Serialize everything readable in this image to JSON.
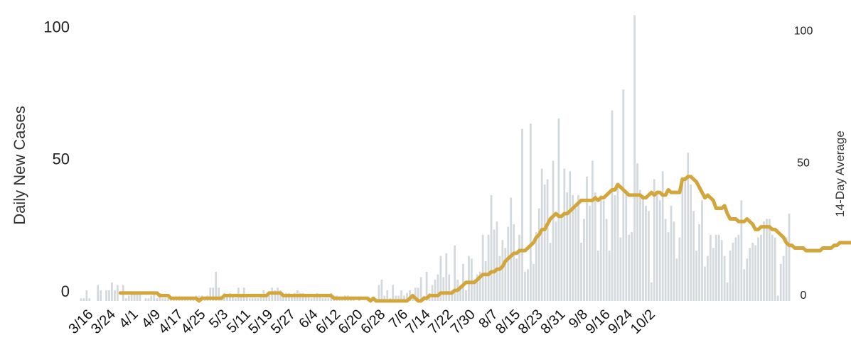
{
  "chart_data": {
    "type": "bar+line",
    "title": "",
    "ylabel_left": "Daily New Cases",
    "ylabel_right": "14-Day Average",
    "ylim_left": [
      0,
      110
    ],
    "ylim_right": [
      0,
      110
    ],
    "yticks_left": [
      "0",
      "50",
      "100"
    ],
    "yticks_right": [
      "0",
      "50",
      "100"
    ],
    "xtick_labels": [
      "3/16",
      "3/24",
      "4/1",
      "4/9",
      "4/17",
      "4/25",
      "5/3",
      "5/11",
      "5/19",
      "5/27",
      "6/4",
      "6/12",
      "6/20",
      "6/28",
      "7/6",
      "7/14",
      "7/22",
      "7/30",
      "8/7",
      "8/15",
      "8/23",
      "8/31",
      "9/8",
      "9/16",
      "9/24",
      "10/2"
    ],
    "start_date": "3/14",
    "grid": false,
    "legend": "none",
    "colors": {
      "bars": "#d3d9dc",
      "line": "#d3a63c"
    },
    "series": [
      {
        "name": "Daily New Cases",
        "kind": "bar",
        "values": [
          1,
          1,
          4,
          1,
          0,
          0,
          6,
          4,
          0,
          4,
          4,
          7,
          4,
          6,
          0,
          6,
          1,
          2,
          3,
          3,
          3,
          3,
          0,
          1,
          1,
          2,
          3,
          1,
          3,
          1,
          1,
          1,
          1,
          1,
          1,
          1,
          1,
          1,
          1,
          1,
          1,
          2,
          2,
          2,
          1,
          2,
          5,
          5,
          11,
          5,
          2,
          3,
          2,
          3,
          2,
          1,
          5,
          2,
          5,
          2,
          1,
          1,
          1,
          1,
          2,
          4,
          2,
          2,
          5,
          4,
          5,
          4,
          2,
          3,
          3,
          2,
          3,
          4,
          3,
          3,
          2,
          2,
          1,
          2,
          3,
          2,
          1,
          1,
          1,
          3,
          2,
          2,
          1,
          1,
          2,
          2,
          1,
          1,
          0,
          1,
          0,
          0,
          1,
          0,
          1,
          1,
          6,
          8,
          2,
          4,
          1,
          6,
          2,
          2,
          4,
          2,
          3,
          4,
          2,
          5,
          5,
          9,
          2,
          11,
          3,
          6,
          8,
          10,
          17,
          9,
          18,
          10,
          4,
          21,
          8,
          6,
          14,
          4,
          17,
          16,
          8,
          10,
          11,
          25,
          15,
          25,
          40,
          27,
          30,
          17,
          23,
          20,
          28,
          39,
          29,
          16,
          25,
          65,
          11,
          12,
          67,
          14,
          26,
          35,
          50,
          44,
          46,
          22,
          53,
          30,
          69,
          32,
          50,
          41,
          49,
          40,
          35,
          40,
          22,
          31,
          47,
          36,
          53,
          41,
          19,
          40,
          38,
          31,
          19,
          72,
          40,
          43,
          24,
          80,
          41,
          25,
          26,
          108,
          52,
          42,
          40,
          36,
          34,
          7,
          46,
          41,
          38,
          49,
          31,
          26,
          36,
          30,
          16,
          24,
          46,
          47,
          56,
          44,
          34,
          19,
          29,
          38,
          13,
          17,
          25,
          20,
          25,
          25,
          23,
          17,
          7,
          19,
          22,
          24,
          25,
          38,
          12,
          16,
          20,
          22,
          21,
          24,
          25,
          30,
          31,
          31,
          25,
          24,
          2,
          14,
          17,
          24,
          33
        ]
      },
      {
        "name": "14-Day Average",
        "kind": "line",
        "start_index": 14,
        "values": [
          3,
          3,
          3,
          3,
          3,
          3,
          3,
          3,
          3,
          3,
          3,
          3,
          3,
          3,
          2,
          2,
          2,
          2,
          1,
          1,
          1,
          1,
          1,
          1,
          1,
          1,
          1,
          1,
          0,
          1,
          1,
          1,
          1,
          1,
          1,
          1,
          1,
          2,
          2,
          2,
          2,
          2,
          2,
          2,
          2,
          2,
          2,
          2,
          2,
          2,
          2,
          2,
          2,
          3,
          3,
          3,
          3,
          3,
          2,
          2,
          2,
          2,
          2,
          2,
          2,
          2,
          2,
          2,
          2,
          2,
          2,
          2,
          2,
          2,
          2,
          2,
          1,
          1,
          1,
          1,
          1,
          1,
          1,
          1,
          1,
          1,
          1,
          1,
          1,
          0,
          1,
          0,
          0,
          0,
          0,
          0,
          0,
          0,
          0,
          0,
          0,
          0,
          0,
          1,
          2,
          1,
          0,
          0,
          1,
          1,
          2,
          2,
          2,
          2,
          3,
          3,
          3,
          3,
          3,
          4,
          4,
          5,
          6,
          7,
          7,
          7,
          7,
          8,
          9,
          10,
          10,
          10,
          11,
          11,
          12,
          12,
          13,
          15,
          16,
          17,
          18,
          18,
          19,
          19,
          19,
          20,
          21,
          22,
          24,
          25,
          27,
          27,
          29,
          31,
          32,
          33,
          32,
          32,
          33,
          33,
          34,
          35,
          36,
          37,
          38,
          38,
          38,
          38,
          38,
          39,
          38,
          39,
          39,
          40,
          41,
          42,
          42,
          44,
          43,
          42,
          41,
          40,
          40,
          40,
          40,
          40,
          39,
          39,
          40,
          41,
          40,
          41,
          41,
          40,
          40,
          42,
          41,
          41,
          41,
          41,
          46,
          46,
          47,
          47,
          46,
          45,
          43,
          41,
          39,
          40,
          39,
          38,
          35,
          35,
          35,
          36,
          33,
          31,
          31,
          31,
          30,
          30,
          30,
          31,
          30,
          29,
          27,
          27,
          28,
          28,
          28,
          28,
          27,
          27,
          26,
          25,
          24,
          22,
          21,
          21,
          20,
          20,
          20,
          20,
          19,
          19,
          19,
          19,
          19,
          19,
          20,
          20,
          20,
          20,
          21,
          21,
          22,
          22,
          22,
          22,
          22,
          22,
          22,
          21,
          22,
          22
        ]
      }
    ]
  }
}
